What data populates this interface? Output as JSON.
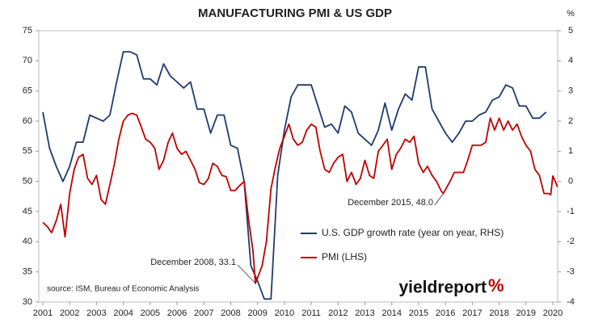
{
  "chart_data": {
    "type": "line",
    "title": "MANUFACTURING PMI & US GDP",
    "y2_unit": "%",
    "source": "source: ISM, Bureau of Economic Analysis",
    "logo": {
      "text": "yieldreport",
      "mark": "%"
    },
    "xlim": [
      2000.85,
      2020.18
    ],
    "xticks": [
      2001,
      2002,
      2003,
      2004,
      2005,
      2006,
      2007,
      2008,
      2009,
      2010,
      2011,
      2012,
      2013,
      2014,
      2015,
      2016,
      2017,
      2018,
      2019,
      2020
    ],
    "ylim": [
      30,
      75
    ],
    "yticks": [
      30,
      35,
      40,
      45,
      50,
      55,
      60,
      65,
      70,
      75
    ],
    "y2lim": [
      -4,
      5
    ],
    "y2ticks": [
      -4,
      -3,
      -2,
      -1,
      0,
      1,
      2,
      3,
      4,
      5
    ],
    "legend": "center-right",
    "series": [
      {
        "name": "U.S. GDP growth rate (year on year, RHS)",
        "color": "#1f3a6e",
        "axis": "y2",
        "x": [
          2001,
          2001.25,
          2001.5,
          2001.75,
          2002,
          2002.25,
          2002.5,
          2002.75,
          2003,
          2003.25,
          2003.5,
          2003.75,
          2004,
          2004.25,
          2004.5,
          2004.75,
          2005,
          2005.25,
          2005.5,
          2005.75,
          2006,
          2006.25,
          2006.5,
          2006.75,
          2007,
          2007.25,
          2007.5,
          2007.75,
          2008,
          2008.25,
          2008.5,
          2008.75,
          2009,
          2009.25,
          2009.5,
          2009.75,
          2010,
          2010.25,
          2010.5,
          2010.75,
          2011,
          2011.25,
          2011.5,
          2011.75,
          2012,
          2012.25,
          2012.5,
          2012.75,
          2013,
          2013.25,
          2013.5,
          2013.75,
          2014,
          2014.25,
          2014.5,
          2014.75,
          2015,
          2015.25,
          2015.5,
          2015.75,
          2016,
          2016.25,
          2016.5,
          2016.75,
          2017,
          2017.25,
          2017.5,
          2017.75,
          2018,
          2018.25,
          2018.5,
          2018.75,
          2019,
          2019.25,
          2019.5,
          2019.75
        ],
        "values": [
          2.3,
          1.1,
          0.5,
          0.0,
          0.5,
          1.3,
          1.3,
          2.2,
          2.1,
          2.0,
          2.2,
          3.3,
          4.3,
          4.3,
          4.2,
          3.4,
          3.4,
          3.2,
          3.9,
          3.5,
          3.3,
          3.1,
          3.3,
          2.4,
          2.4,
          1.6,
          2.2,
          2.2,
          1.2,
          1.1,
          0.0,
          -2.8,
          -3.3,
          -3.9,
          -3.9,
          0.2,
          1.7,
          2.8,
          3.2,
          3.2,
          3.2,
          2.5,
          1.8,
          1.9,
          1.6,
          2.5,
          2.3,
          1.6,
          1.4,
          1.2,
          1.7,
          2.6,
          1.7,
          2.4,
          2.9,
          2.7,
          3.8,
          3.8,
          2.4,
          2.0,
          1.6,
          1.3,
          1.6,
          2.0,
          2.0,
          2.2,
          2.3,
          2.7,
          2.8,
          3.2,
          3.1,
          2.5,
          2.5,
          2.1,
          2.1,
          2.3
        ]
      },
      {
        "name": "PMI (LHS)",
        "color": "#c00000",
        "x": [
          2001,
          2001.17,
          2001.33,
          2001.5,
          2001.67,
          2001.83,
          2002,
          2002.17,
          2002.33,
          2002.5,
          2002.67,
          2002.83,
          2003,
          2003.17,
          2003.33,
          2003.5,
          2003.67,
          2003.83,
          2004,
          2004.17,
          2004.33,
          2004.5,
          2004.67,
          2004.83,
          2005,
          2005.17,
          2005.33,
          2005.5,
          2005.67,
          2005.83,
          2006,
          2006.17,
          2006.33,
          2006.5,
          2006.67,
          2006.83,
          2007,
          2007.17,
          2007.33,
          2007.5,
          2007.67,
          2007.83,
          2008,
          2008.17,
          2008.33,
          2008.5,
          2008.67,
          2008.83,
          2008.92,
          2009.17,
          2009.33,
          2009.5,
          2009.67,
          2009.83,
          2010,
          2010.17,
          2010.33,
          2010.5,
          2010.67,
          2010.83,
          2011,
          2011.17,
          2011.33,
          2011.5,
          2011.67,
          2011.83,
          2012,
          2012.17,
          2012.33,
          2012.5,
          2012.67,
          2012.83,
          2013,
          2013.17,
          2013.33,
          2013.5,
          2013.67,
          2013.83,
          2014,
          2014.17,
          2014.33,
          2014.5,
          2014.67,
          2014.83,
          2015,
          2015.17,
          2015.33,
          2015.5,
          2015.67,
          2015.83,
          2015.92,
          2016.17,
          2016.33,
          2016.5,
          2016.67,
          2016.83,
          2017,
          2017.17,
          2017.33,
          2017.5,
          2017.67,
          2017.83,
          2018,
          2018.17,
          2018.33,
          2018.5,
          2018.67,
          2018.83,
          2019,
          2019.17,
          2019.33,
          2019.5,
          2019.67,
          2019.83,
          2019.92,
          2020,
          2020.08,
          2020.17
        ],
        "values": [
          43.2,
          42.5,
          41.5,
          43.5,
          46.2,
          40.8,
          48,
          52,
          54,
          54.5,
          50.5,
          49.5,
          51,
          47,
          46.2,
          49.5,
          53,
          57,
          60,
          61,
          61.3,
          61,
          59,
          57,
          56.5,
          55.5,
          52,
          53.5,
          56.5,
          58,
          55.5,
          54.5,
          55,
          53.5,
          52,
          49.8,
          49.5,
          50.5,
          53,
          52.5,
          51,
          50.8,
          48.5,
          48.5,
          49.3,
          50,
          43.5,
          38.5,
          33.1,
          36,
          40,
          48.8,
          52.5,
          55.5,
          57.5,
          59.5,
          57,
          56,
          56.5,
          58.5,
          59.5,
          59,
          55,
          52,
          51.5,
          53,
          54,
          54.5,
          50,
          51.5,
          49.5,
          50.5,
          53.5,
          51,
          50.5,
          55,
          56,
          57,
          52,
          54.5,
          55.5,
          57,
          56.5,
          57.5,
          53,
          51.5,
          52.5,
          51,
          50,
          48.5,
          48.0,
          50,
          51.5,
          51.5,
          51.5,
          53.5,
          56,
          56,
          56,
          56.5,
          60.5,
          58.5,
          60.5,
          58.5,
          60,
          58.5,
          59.5,
          57.5,
          56,
          55,
          52,
          51,
          48,
          48,
          47.8,
          50.9,
          50.1,
          49.1
        ]
      }
    ],
    "annotations": [
      {
        "text": "December 2008, 33.1",
        "x": 2008.92,
        "y": 33.1
      },
      {
        "text": "December 2015, 48.0",
        "x": 2015.92,
        "y": 48.0
      }
    ]
  }
}
